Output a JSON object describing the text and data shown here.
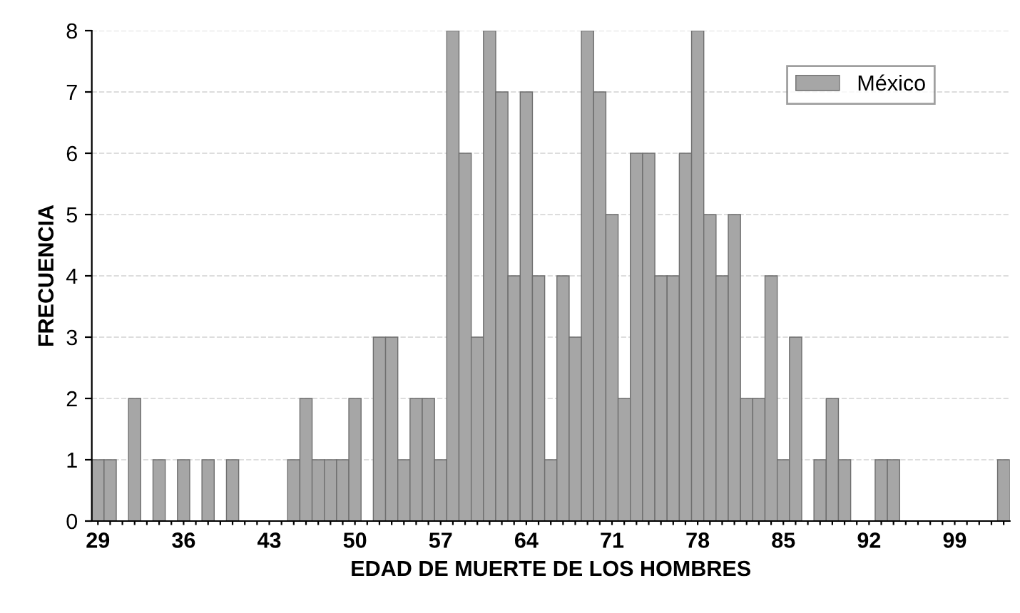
{
  "chart_data": {
    "type": "bar",
    "xlabel": "EDAD DE MUERTE DE LOS HOMBRES",
    "ylabel": "FRECUENCIA",
    "categories": [
      "29",
      null,
      null,
      null,
      null,
      null,
      null,
      "36",
      null,
      null,
      null,
      null,
      null,
      null,
      "43",
      null,
      null,
      null,
      null,
      null,
      null,
      "50",
      null,
      null,
      null,
      null,
      null,
      null,
      "57",
      null,
      null,
      null,
      null,
      null,
      null,
      "64",
      null,
      null,
      null,
      null,
      null,
      null,
      "71",
      null,
      null,
      null,
      null,
      null,
      null,
      "78",
      null,
      null,
      null,
      null,
      null,
      null,
      "85",
      null,
      null,
      null,
      null,
      null,
      null,
      "92",
      null,
      null,
      null,
      null,
      null,
      null,
      "99",
      null,
      null,
      null,
      null
    ],
    "series": [
      {
        "name": "México",
        "color": "#a6a6a6",
        "values": [
          1,
          1,
          0,
          2,
          0,
          1,
          0,
          1,
          0,
          1,
          0,
          1,
          0,
          0,
          0,
          0,
          1,
          2,
          1,
          1,
          1,
          2,
          0,
          3,
          3,
          1,
          2,
          2,
          1,
          8,
          6,
          3,
          8,
          7,
          4,
          7,
          4,
          1,
          4,
          3,
          8,
          7,
          5,
          2,
          6,
          6,
          4,
          4,
          6,
          8,
          5,
          4,
          5,
          2,
          2,
          4,
          1,
          3,
          0,
          1,
          2,
          1,
          0,
          0,
          1,
          1,
          0,
          0,
          0,
          0,
          0,
          0,
          0,
          0,
          1
        ]
      }
    ],
    "ylim": [
      0,
      8
    ],
    "yticks": [
      0,
      1,
      2,
      3,
      4,
      5,
      6,
      7,
      8
    ],
    "grid": "y",
    "legend": "top right"
  }
}
